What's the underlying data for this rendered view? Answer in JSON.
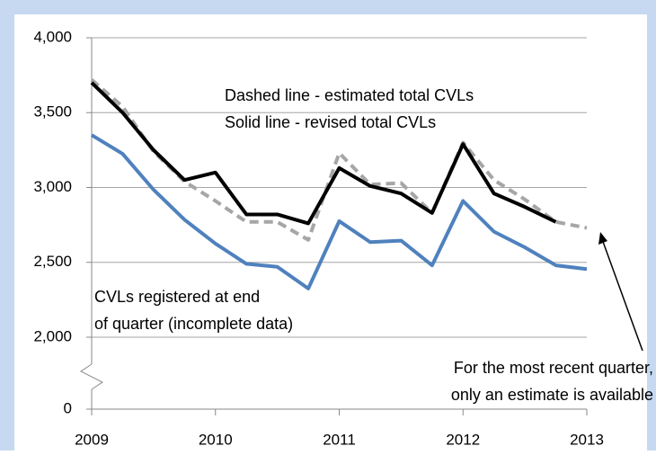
{
  "chart_data": {
    "type": "line",
    "x": [
      2009,
      2009.25,
      2009.5,
      2009.75,
      2010,
      2010.25,
      2010.5,
      2010.75,
      2011,
      2011.25,
      2011.5,
      2011.75,
      2012,
      2012.25,
      2012.5,
      2012.75,
      2013
    ],
    "series": [
      {
        "color": "#4f81bd",
        "dash": false,
        "values": [
          3350,
          3225,
          2985,
          2785,
          2625,
          2490,
          2470,
          2325,
          2775,
          2635,
          2645,
          2480,
          2910,
          2705,
          2600,
          2480,
          2455
        ]
      },
      {
        "color": "#a6a6a6",
        "dash": true,
        "values": [
          3720,
          3540,
          3240,
          3040,
          2910,
          2770,
          2770,
          2650,
          3230,
          3020,
          3030,
          2830,
          3300,
          3050,
          2920,
          2770,
          2730
        ]
      },
      {
        "color": "#000000",
        "dash": false,
        "values": [
          3700,
          3500,
          3250,
          3050,
          3100,
          2820,
          2820,
          2760,
          3130,
          3010,
          2960,
          2830,
          3290,
          2960,
          2870,
          2770,
          null
        ]
      }
    ],
    "xlim": [
      2009,
      2013
    ],
    "xticks": [
      2009,
      2010,
      2011,
      2012,
      2013
    ],
    "ylim": [
      0,
      4000
    ],
    "yticks": [
      0,
      {
        "value": 2000,
        "label": "2,000"
      },
      {
        "value": 2500,
        "label": "2,500"
      },
      {
        "value": 3000,
        "label": "3,000"
      },
      {
        "value": 3500,
        "label": "3,500"
      },
      {
        "value": 4000,
        "label": "4,000"
      }
    ],
    "y_axis_break": true,
    "grid": true,
    "annotations": [
      [
        "Dashed line - estimated total CVLs",
        "Solid line - revised total CVLs"
      ],
      [
        "CVLs registered at end",
        "of quarter (incomplete data)"
      ],
      [
        "For the most recent quarter,",
        "only an estimate is available"
      ]
    ]
  }
}
